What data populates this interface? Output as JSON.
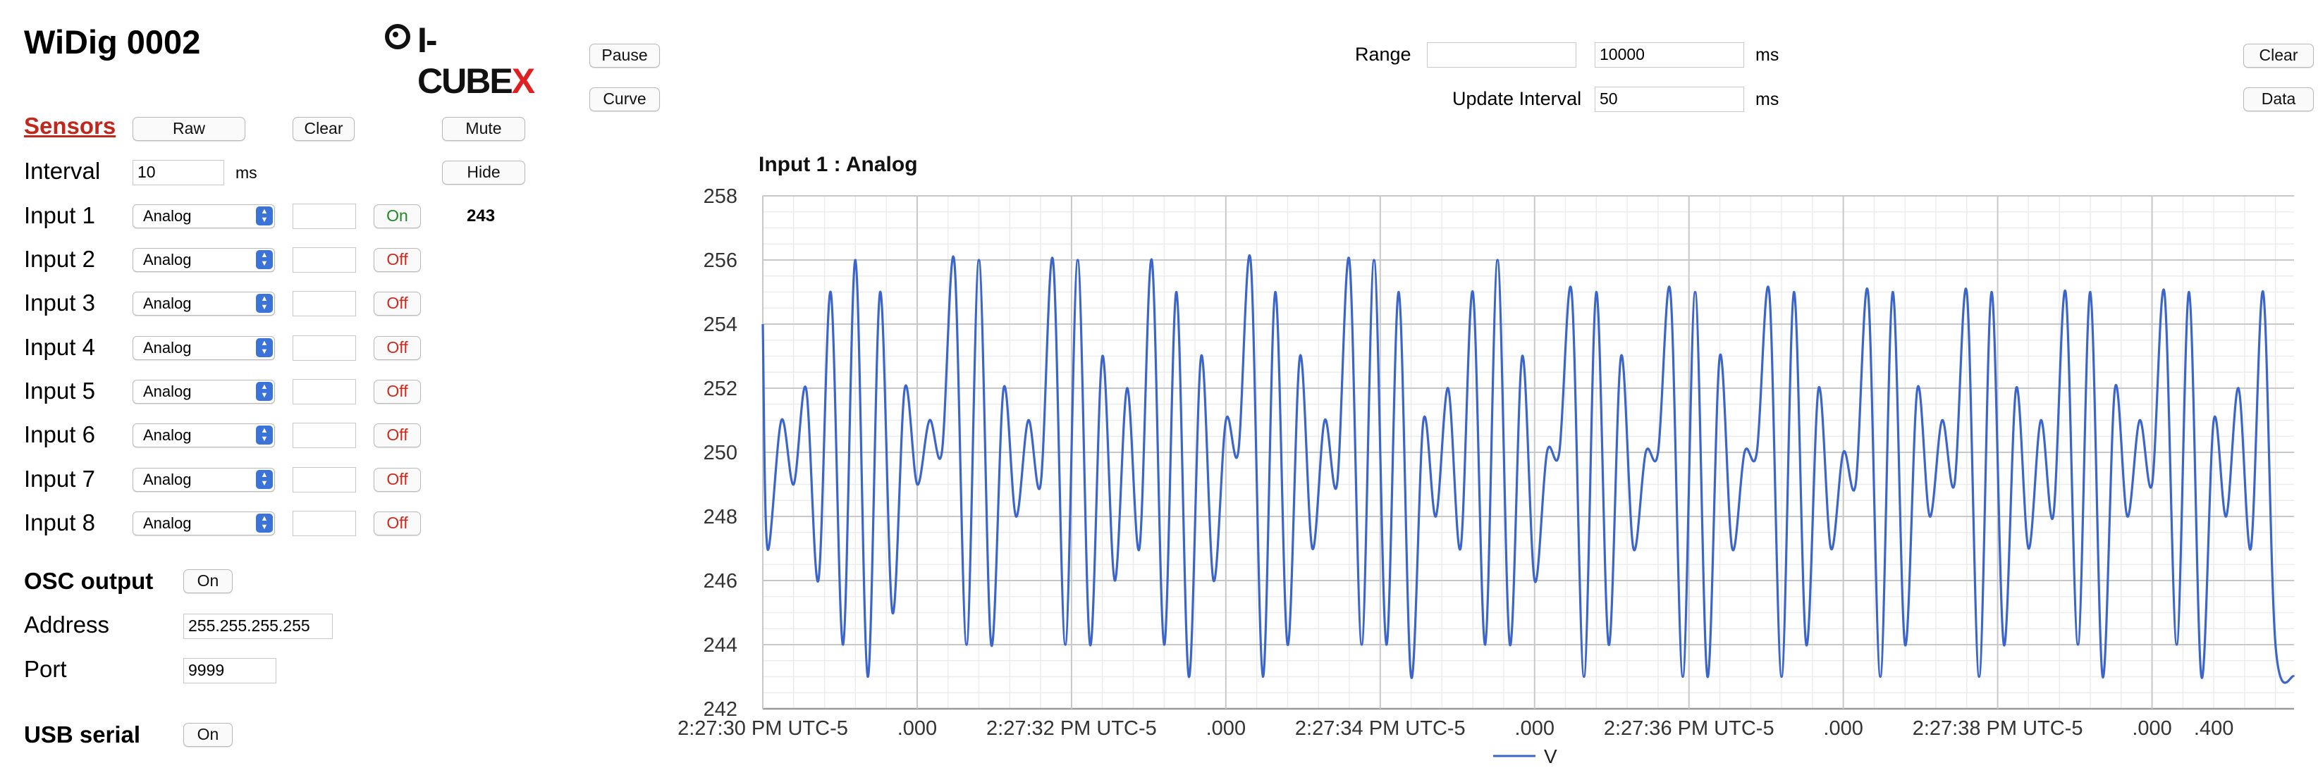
{
  "device_title": "WiDig 0002",
  "logo": {
    "text": "I-CUBE",
    "accent_letter": "X"
  },
  "left_panel": {
    "sensors_label": "Sensors",
    "raw_label": "Raw",
    "clear_label": "Clear",
    "mute_label": "Mute",
    "hide_label": "Hide",
    "interval_label": "Interval",
    "interval_value": "10",
    "interval_unit": "ms",
    "inputs": [
      {
        "label": "Input 1",
        "type": "Analog",
        "state": "On",
        "value": "243"
      },
      {
        "label": "Input 2",
        "type": "Analog",
        "state": "Off"
      },
      {
        "label": "Input 3",
        "type": "Analog",
        "state": "Off"
      },
      {
        "label": "Input 4",
        "type": "Analog",
        "state": "Off"
      },
      {
        "label": "Input 5",
        "type": "Analog",
        "state": "Off"
      },
      {
        "label": "Input 6",
        "type": "Analog",
        "state": "Off"
      },
      {
        "label": "Input 7",
        "type": "Analog",
        "state": "Off"
      },
      {
        "label": "Input 8",
        "type": "Analog",
        "state": "Off"
      }
    ],
    "osc_label": "OSC output",
    "osc_state": "On",
    "address_label": "Address",
    "address_value": "255.255.255.255",
    "port_label": "Port",
    "port_value": "9999",
    "usb_label": "USB serial",
    "usb_state": "On"
  },
  "toolbar": {
    "pause_label": "Pause",
    "curve_label": "Curve",
    "range_label": "Range",
    "range_min_value": "",
    "range_value": "10000",
    "range_unit": "ms",
    "update_label": "Update Interval",
    "update_value": "50",
    "update_unit": "ms",
    "clear_label": "Clear",
    "data_label": "Data"
  },
  "colors": {
    "line": "#3b65c8",
    "on_text": "#1d8a1d",
    "off_text": "#cc2a1f",
    "sensors_link": "#c0281e",
    "select_chevron": "#3b73d9"
  },
  "chart_data": {
    "type": "line",
    "title": "Input 1 : Analog",
    "y_ticks": [
      "258",
      "256",
      "254",
      "252",
      "250",
      "248",
      "246",
      "244",
      "242"
    ],
    "ylim": [
      242,
      258
    ],
    "x_tick_labels": [
      "2:27:30 PM UTC-5",
      ".000",
      "2:27:32 PM UTC-5",
      ".000",
      "2:27:34 PM UTC-5",
      ".000",
      "2:27:36 PM UTC-5",
      ".000",
      "2:27:38 PM UTC-5",
      ".000",
      ".400"
    ],
    "x_tick_times_s": [
      0,
      1,
      2,
      3,
      4,
      5,
      6,
      7,
      8,
      9,
      9.4
    ],
    "xlim_s": [
      0,
      9.92
    ],
    "grid": true,
    "legend_position": "bottom",
    "series": [
      {
        "name": "V",
        "x_s": [
          0,
          0.03,
          0.12,
          0.2,
          0.28,
          0.36,
          0.44,
          0.52,
          0.6,
          0.68,
          0.76,
          0.84,
          0.92,
          1.0,
          1.08,
          1.16,
          1.24,
          1.32,
          1.4,
          1.48,
          1.56,
          1.64,
          1.72,
          1.8,
          1.88,
          1.96,
          2.04,
          2.12,
          2.2,
          2.28,
          2.36,
          2.44,
          2.52,
          2.6,
          2.68,
          2.76,
          2.84,
          2.92,
          3.0,
          3.08,
          3.16,
          3.24,
          3.32,
          3.4,
          3.48,
          3.56,
          3.64,
          3.72,
          3.8,
          3.88,
          3.96,
          4.04,
          4.12,
          4.2,
          4.28,
          4.36,
          4.44,
          4.52,
          4.6,
          4.68,
          4.76,
          4.84,
          4.92,
          5.0,
          5.08,
          5.16,
          5.24,
          5.32,
          5.4,
          5.48,
          5.56,
          5.64,
          5.72,
          5.8,
          5.88,
          5.96,
          6.04,
          6.12,
          6.2,
          6.28,
          6.36,
          6.44,
          6.52,
          6.6,
          6.68,
          6.76,
          6.84,
          6.92,
          7.0,
          7.08,
          7.16,
          7.24,
          7.32,
          7.4,
          7.48,
          7.56,
          7.64,
          7.72,
          7.8,
          7.88,
          7.96,
          8.04,
          8.12,
          8.2,
          8.28,
          8.36,
          8.44,
          8.52,
          8.6,
          8.68,
          8.76,
          8.84,
          8.92,
          9.0,
          9.08,
          9.16,
          9.24,
          9.32,
          9.4,
          9.48,
          9.56,
          9.64,
          9.72,
          9.8,
          9.92
        ],
        "y": [
          254,
          247,
          251,
          249,
          252,
          246,
          255,
          244,
          256,
          243,
          255,
          245,
          252,
          249,
          251,
          250,
          256,
          244,
          256,
          244,
          252,
          248,
          251,
          249,
          256,
          244,
          256,
          244,
          253,
          246,
          252,
          247,
          256,
          244,
          255,
          243,
          253,
          246,
          251,
          250,
          256,
          243,
          255,
          244,
          253,
          247,
          251,
          249,
          256,
          244,
          256,
          244,
          255,
          243,
          251,
          248,
          252,
          247,
          255,
          244,
          256,
          244,
          253,
          246,
          250,
          250,
          255,
          243,
          255,
          244,
          253,
          247,
          250,
          250,
          255,
          243,
          255,
          243,
          253,
          247,
          250,
          250,
          255,
          243,
          255,
          244,
          252,
          247,
          250,
          249,
          255,
          243,
          255,
          244,
          252,
          248,
          251,
          249,
          255,
          243,
          255,
          244,
          252,
          247,
          251,
          248,
          255,
          244,
          255,
          243,
          252,
          248,
          251,
          249,
          255,
          244,
          255,
          243,
          251,
          248,
          252,
          247,
          255,
          244,
          243
        ]
      }
    ]
  }
}
